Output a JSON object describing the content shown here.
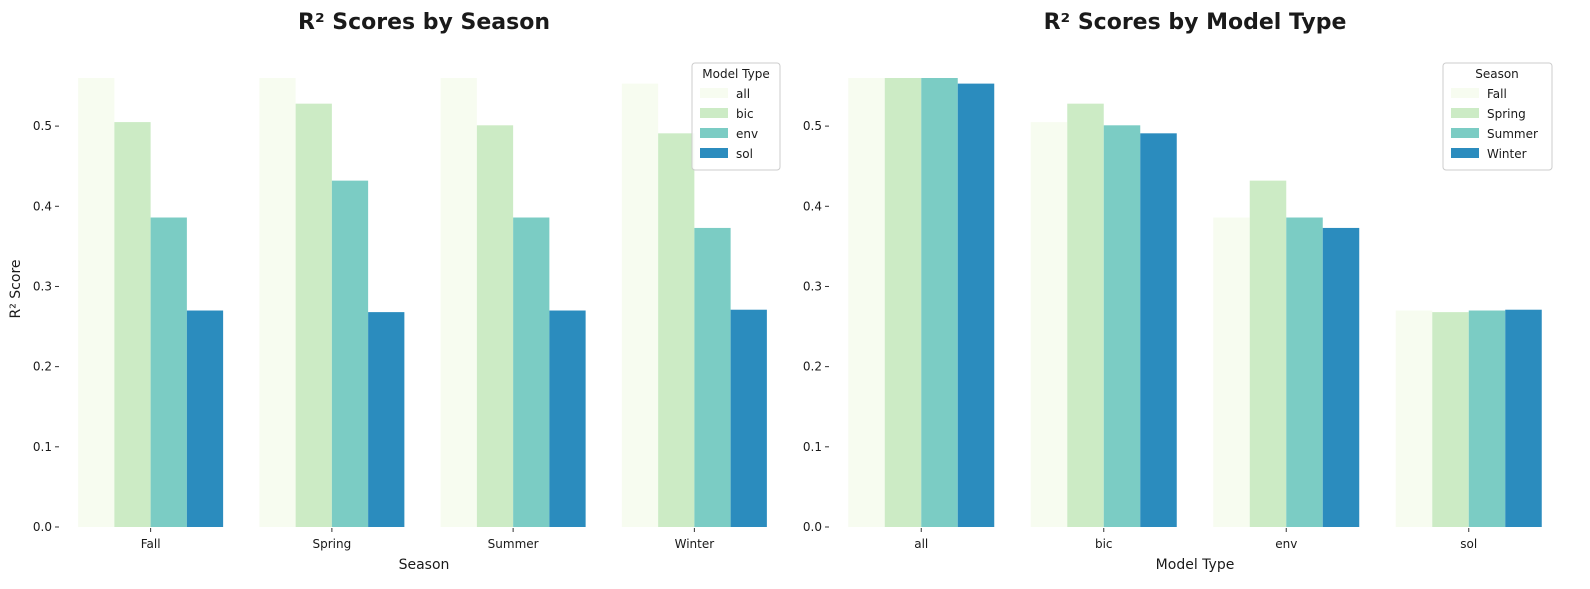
{
  "chart_data": [
    {
      "type": "bar",
      "title": "R² Scores by Season",
      "xlabel": "Season",
      "ylabel": "R² Score",
      "categories": [
        "Fall",
        "Spring",
        "Summer",
        "Winter"
      ],
      "ylim": [
        0,
        0.56
      ],
      "yticks": [
        "0.0",
        "0.1",
        "0.2",
        "0.3",
        "0.4",
        "0.5"
      ],
      "legend": {
        "title": "Model Type",
        "position": "top-right"
      },
      "series": [
        {
          "name": "all",
          "color": "#f7fcf0",
          "values": [
            0.56,
            0.56,
            0.56,
            0.553
          ]
        },
        {
          "name": "bic",
          "color": "#ccebc5",
          "values": [
            0.505,
            0.528,
            0.501,
            0.491
          ]
        },
        {
          "name": "env",
          "color": "#7bccc4",
          "values": [
            0.386,
            0.432,
            0.386,
            0.373
          ]
        },
        {
          "name": "sol",
          "color": "#2b8cbe",
          "values": [
            0.27,
            0.268,
            0.27,
            0.271
          ]
        }
      ]
    },
    {
      "type": "bar",
      "title": "R² Scores by Model Type",
      "xlabel": "Model Type",
      "ylabel": "",
      "categories": [
        "all",
        "bic",
        "env",
        "sol"
      ],
      "ylim": [
        0,
        0.56
      ],
      "yticks": [
        "0.0",
        "0.1",
        "0.2",
        "0.3",
        "0.4",
        "0.5"
      ],
      "legend": {
        "title": "Season",
        "position": "top-right"
      },
      "series": [
        {
          "name": "Fall",
          "color": "#f7fcf0",
          "values": [
            0.56,
            0.505,
            0.386,
            0.27
          ]
        },
        {
          "name": "Spring",
          "color": "#ccebc5",
          "values": [
            0.56,
            0.528,
            0.432,
            0.268
          ]
        },
        {
          "name": "Summer",
          "color": "#7bccc4",
          "values": [
            0.56,
            0.501,
            0.386,
            0.27
          ]
        },
        {
          "name": "Winter",
          "color": "#2b8cbe",
          "values": [
            0.553,
            0.491,
            0.373,
            0.271
          ]
        }
      ]
    }
  ]
}
